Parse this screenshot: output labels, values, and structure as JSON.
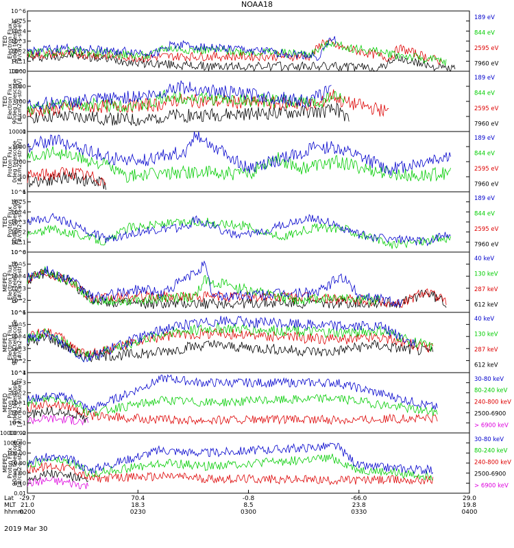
{
  "title": "NOAA18",
  "date_label": "2019 Mar 30",
  "x_axis": {
    "row_labels": [
      "Lat",
      "MLT",
      "hhmm"
    ],
    "ticks": [
      {
        "lat": "-29.7",
        "mlt": "21.0",
        "hhmm": "0200"
      },
      {
        "lat": "70.4",
        "mlt": "18.3",
        "hhmm": "0230"
      },
      {
        "lat": "-0.8",
        "mlt": "8.5",
        "hhmm": "0300"
      },
      {
        "lat": "-66.0",
        "mlt": "23.8",
        "hhmm": "0330"
      },
      {
        "lat": "29.0",
        "mlt": "19.8",
        "hhmm": "0400"
      }
    ]
  },
  "colors": {
    "black": "#000000",
    "red": "#dd0000",
    "green": "#00cc00",
    "blue": "#0000cc",
    "magenta": "#dd00dd"
  },
  "chart_data": [
    {
      "type": "line",
      "ylabel": [
        "TED",
        "Electron Flux",
        "0deg telescope",
        "[#/cm2-s-str-eV]"
      ],
      "yscale": "log",
      "ylim": [
        1,
        1000000
      ],
      "ytick_labels": [
        "10^0",
        "10^1",
        "10^2",
        "10^3",
        "10^4",
        "10^5",
        "10^6"
      ],
      "series": [
        {
          "name": "7960 eV",
          "color": "black",
          "x": [
            0,
            10,
            27,
            28,
            40,
            66,
            70,
            80,
            83,
            94,
            97
          ],
          "y": [
            20,
            40,
            6,
            6,
            3,
            3,
            3,
            2,
            20,
            2,
            2
          ]
        },
        {
          "name": "2595 eV",
          "color": "red",
          "x": [
            0,
            10,
            27,
            30,
            64,
            67,
            70,
            82,
            84,
            94
          ],
          "y": [
            40,
            60,
            20,
            30,
            30,
            1000,
            300,
            20,
            200,
            8
          ]
        },
        {
          "name": "844 eV",
          "color": "green",
          "x": [
            0,
            10,
            28,
            30,
            64,
            69,
            71,
            95
          ],
          "y": [
            60,
            100,
            30,
            200,
            50,
            800,
            300,
            8
          ]
        },
        {
          "name": "189 eV",
          "color": "blue",
          "x": [
            0,
            10,
            29,
            33,
            66,
            69,
            70
          ],
          "y": [
            100,
            200,
            60,
            500,
            30,
            2000,
            1000
          ]
        }
      ]
    },
    {
      "type": "line",
      "ylabel": [
        "TED",
        "Electron Flux",
        "90deg telescope",
        "[#/cm2-s-str-eV]"
      ],
      "yscale": "log",
      "ylim": [
        1,
        10000
      ],
      "ytick_labels": [
        "1",
        "10",
        "100",
        "1000",
        "10000"
      ],
      "series": [
        {
          "name": "7960 eV",
          "color": "black",
          "x": [
            0,
            10,
            27,
            30,
            67,
            70,
            73
          ],
          "y": [
            10,
            10,
            5,
            10,
            20,
            30,
            5
          ]
        },
        {
          "name": "2595 eV",
          "color": "red",
          "x": [
            0,
            10,
            30,
            33,
            66,
            69,
            71,
            82
          ],
          "y": [
            20,
            40,
            60,
            120,
            60,
            300,
            100,
            20
          ]
        },
        {
          "name": "844 eV",
          "color": "green",
          "x": [
            0,
            10,
            28,
            31,
            66,
            69,
            72
          ],
          "y": [
            30,
            60,
            60,
            200,
            80,
            300,
            100
          ]
        },
        {
          "name": "189 eV",
          "color": "blue",
          "x": [
            0,
            10,
            30,
            33,
            64,
            69
          ],
          "y": [
            60,
            100,
            300,
            1000,
            100,
            1000
          ]
        }
      ]
    },
    {
      "type": "line",
      "ylabel": [
        "TED",
        "Proton Flux",
        "0deg telescope",
        "[#/cm2-s-str-eV]"
      ],
      "yscale": "log",
      "ylim": [
        1,
        10000
      ],
      "ytick_labels": [
        "1",
        "10",
        "100",
        "1000",
        "10000"
      ],
      "series": [
        {
          "name": "7960 eV",
          "color": "black",
          "x": [
            0,
            10,
            18
          ],
          "y": [
            5,
            10,
            3
          ]
        },
        {
          "name": "2595 eV",
          "color": "red",
          "x": [
            0,
            10,
            18
          ],
          "y": [
            10,
            20,
            5
          ]
        },
        {
          "name": "844 eV",
          "color": "green",
          "x": [
            0,
            6,
            18,
            22,
            35,
            50,
            56,
            62,
            70,
            80,
            88,
            96
          ],
          "y": [
            200,
            500,
            60,
            10,
            20,
            15,
            200,
            40,
            100,
            20,
            10,
            20
          ]
        },
        {
          "name": "189 eV",
          "color": "blue",
          "x": [
            0,
            6,
            18,
            25,
            36,
            38,
            45,
            50,
            66,
            70,
            82,
            96
          ],
          "y": [
            1000,
            3000,
            200,
            100,
            500,
            8000,
            300,
            30,
            1000,
            800,
            30,
            300
          ]
        }
      ]
    },
    {
      "type": "line",
      "ylabel": [
        "TED",
        "Proton Flux",
        "90deg telescope",
        "[#/cm2-s-str-eV]"
      ],
      "yscale": "log",
      "ylim": [
        1,
        1000000
      ],
      "ytick_labels": [
        "10^0",
        "10^1",
        "10^2",
        "10^3",
        "10^4",
        "10^5",
        "10^6"
      ],
      "series": [
        {
          "name": "7960 eV",
          "color": "black",
          "x": [],
          "y": []
        },
        {
          "name": "2595 eV",
          "color": "red",
          "x": [],
          "y": []
        },
        {
          "name": "844 eV",
          "color": "green",
          "x": [
            0,
            6,
            18,
            23,
            30,
            40,
            50,
            57,
            65,
            72,
            82,
            96
          ],
          "y": [
            50,
            200,
            10,
            300,
            600,
            1000,
            400,
            30,
            300,
            200,
            5,
            30
          ]
        },
        {
          "name": "189 eV",
          "color": "blue",
          "x": [
            0,
            6,
            18,
            25,
            36,
            38,
            48,
            64,
            68,
            75,
            90,
            96
          ],
          "y": [
            1000,
            3000,
            20,
            100,
            300,
            2000,
            30,
            3000,
            1000,
            50,
            10,
            100
          ]
        }
      ]
    },
    {
      "type": "line",
      "ylabel": [
        "MEPED",
        "Electron Flux",
        "0deg telescope",
        "[#/cm2-s-str]"
      ],
      "yscale": "log",
      "ylim": [
        10,
        1000000
      ],
      "ytick_labels": [
        "10^1",
        "10^2",
        "10^3",
        "10^4",
        "10^5",
        "10^6"
      ],
      "series": [
        {
          "name": "612 keV",
          "color": "black",
          "x": [
            0,
            4,
            9,
            15,
            25,
            60,
            85,
            90,
            95
          ],
          "y": [
            5000,
            20000,
            5000,
            100,
            50,
            60,
            60,
            500,
            50
          ]
        },
        {
          "name": "287 keV",
          "color": "red",
          "x": [
            0,
            4,
            9,
            15,
            25,
            60,
            85,
            90,
            95
          ],
          "y": [
            7000,
            25000,
            6000,
            120,
            200,
            200,
            60,
            700,
            60
          ]
        },
        {
          "name": "130 keV",
          "color": "green",
          "x": [
            0,
            4,
            9,
            15,
            25,
            38,
            40,
            60,
            70,
            80
          ],
          "y": [
            6000,
            22000,
            5000,
            100,
            100,
            200,
            5000,
            100,
            200,
            100
          ]
        },
        {
          "name": "40 keV",
          "color": "blue",
          "x": [
            0,
            4,
            9,
            15,
            27,
            30,
            38,
            40,
            42,
            66,
            71,
            75,
            85
          ],
          "y": [
            8000,
            30000,
            7000,
            150,
            1000,
            300,
            20000,
            100000,
            200,
            500,
            10000,
            300,
            60
          ]
        }
      ]
    },
    {
      "type": "line",
      "ylabel": [
        "MEPED",
        "Electron Flux",
        "90deg telescope",
        "[#/cm2-s-str]"
      ],
      "yscale": "log",
      "ylim": [
        10,
        1000000
      ],
      "ytick_labels": [
        "10^1",
        "10^2",
        "10^3",
        "10^4",
        "10^5",
        "10^6"
      ],
      "series": [
        {
          "name": "612 keV",
          "color": "black",
          "x": [
            0,
            5,
            13,
            28,
            40,
            68,
            78,
            92
          ],
          "y": [
            3000,
            8000,
            200,
            400,
            2000,
            500,
            2000,
            500
          ]
        },
        {
          "name": "287 keV",
          "color": "red",
          "x": [
            0,
            5,
            13,
            31,
            42,
            71,
            79,
            92
          ],
          "y": [
            10000,
            30000,
            300,
            10000,
            20000,
            5000,
            10000,
            1000
          ]
        },
        {
          "name": "130 keV",
          "color": "green",
          "x": [
            0,
            5,
            13,
            31,
            43,
            70,
            80,
            92
          ],
          "y": [
            8000,
            20000,
            200,
            20000,
            50000,
            20000,
            30000,
            1000
          ]
        },
        {
          "name": "40 keV",
          "color": "blue",
          "x": [
            0,
            5,
            13,
            32,
            43,
            70,
            80,
            88
          ],
          "y": [
            6000,
            15000,
            150,
            60000,
            200000,
            80000,
            60000,
            2000
          ]
        }
      ]
    },
    {
      "type": "line",
      "ylabel": [
        "MEPED",
        "Proton Flux",
        "0deg telescope",
        "[#/cm2-s-str-keV]"
      ],
      "yscale": "log",
      "ylim": [
        0.01,
        10000
      ],
      "ytick_labels": [
        "10^-2",
        "10^-1",
        "10^0",
        "10^1",
        "10^2",
        "10^3",
        "10^4"
      ],
      "series": [
        {
          "name": "> 6900 keV",
          "color": "magenta",
          "x": [
            0,
            5,
            10,
            14
          ],
          "y": [
            0.2,
            0.3,
            0.2,
            0.1
          ]
        },
        {
          "name": "2500-6900",
          "color": "black",
          "x": [
            0,
            5,
            10,
            14
          ],
          "y": [
            0.6,
            1.5,
            0.8,
            0.2
          ]
        },
        {
          "name": "240-800 keV",
          "color": "red",
          "x": [
            0,
            5,
            10,
            14,
            30,
            70,
            93
          ],
          "y": [
            3,
            8,
            4,
            0.5,
            0.2,
            0.2,
            0.3
          ]
        },
        {
          "name": "80-240 keV",
          "color": "green",
          "x": [
            0,
            5,
            10,
            14,
            31,
            40,
            70,
            93
          ],
          "y": [
            10,
            30,
            15,
            1,
            20,
            10,
            30,
            1
          ]
        },
        {
          "name": "30-80 keV",
          "color": "blue",
          "x": [
            0,
            5,
            10,
            14,
            31,
            39,
            70,
            93
          ],
          "y": [
            20,
            50,
            30,
            2,
            3000,
            1000,
            1000,
            3
          ]
        }
      ]
    },
    {
      "type": "line",
      "ylabel": [
        "MEPED",
        "Proton Flux",
        "90deg telescope",
        "[#/cm2-s-str-keV]"
      ],
      "yscale": "log",
      "ylim": [
        0.01,
        10000
      ],
      "ytick_labels": [
        "0.01",
        "0.10",
        "1.00",
        "10.00",
        "100.00",
        "1000.00",
        "10000.00"
      ],
      "series": [
        {
          "name": "> 6900 keV",
          "color": "magenta",
          "x": [
            0,
            5,
            10,
            14
          ],
          "y": [
            0.1,
            0.2,
            0.1,
            0.05
          ]
        },
        {
          "name": "2500-6900",
          "color": "black",
          "x": [
            0,
            5,
            10,
            14
          ],
          "y": [
            0.3,
            1,
            0.5,
            0.1
          ]
        },
        {
          "name": "240-800 keV",
          "color": "red",
          "x": [
            0,
            5,
            10,
            14,
            33,
            40,
            69,
            92
          ],
          "y": [
            2,
            5,
            3,
            0.3,
            0.5,
            0.3,
            0.2,
            0.2
          ]
        },
        {
          "name": "80-240 keV",
          "color": "green",
          "x": [
            0,
            5,
            10,
            14,
            32,
            40,
            69,
            75,
            92
          ],
          "y": [
            8,
            20,
            10,
            1,
            10,
            5,
            30,
            2,
            0.5
          ]
        },
        {
          "name": "30-80 keV",
          "color": "blue",
          "x": [
            0,
            5,
            10,
            14,
            30,
            40,
            70,
            75,
            92
          ],
          "y": [
            15,
            40,
            20,
            2,
            200,
            100,
            500,
            5,
            2
          ]
        }
      ]
    }
  ]
}
